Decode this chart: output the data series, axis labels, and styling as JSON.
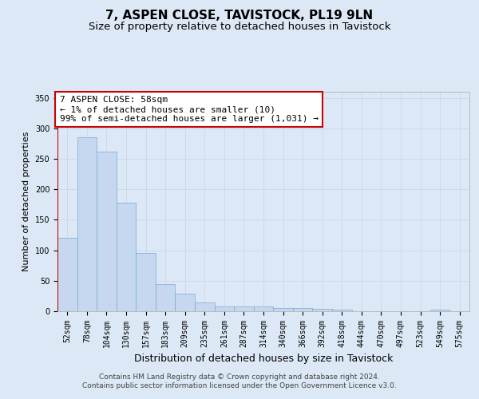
{
  "title": "7, ASPEN CLOSE, TAVISTOCK, PL19 9LN",
  "subtitle": "Size of property relative to detached houses in Tavistock",
  "xlabel": "Distribution of detached houses by size in Tavistock",
  "ylabel": "Number of detached properties",
  "categories": [
    "52sqm",
    "78sqm",
    "104sqm",
    "130sqm",
    "157sqm",
    "183sqm",
    "209sqm",
    "235sqm",
    "261sqm",
    "287sqm",
    "314sqm",
    "340sqm",
    "366sqm",
    "392sqm",
    "418sqm",
    "444sqm",
    "470sqm",
    "497sqm",
    "523sqm",
    "549sqm",
    "575sqm"
  ],
  "values": [
    120,
    285,
    262,
    178,
    96,
    44,
    29,
    15,
    8,
    8,
    8,
    5,
    5,
    4,
    3,
    0,
    0,
    0,
    0,
    3,
    0
  ],
  "bar_color": "#c5d8f0",
  "bar_edge_color": "#7aaad0",
  "annotation_text": "7 ASPEN CLOSE: 58sqm\n← 1% of detached houses are smaller (10)\n99% of semi-detached houses are larger (1,031) →",
  "annotation_box_color": "#ffffff",
  "annotation_box_edge_color": "#cc0000",
  "ylim": [
    0,
    360
  ],
  "yticks": [
    0,
    50,
    100,
    150,
    200,
    250,
    300,
    350
  ],
  "grid_color": "#c8d8ea",
  "background_color": "#dce8f5",
  "footer_line1": "Contains HM Land Registry data © Crown copyright and database right 2024.",
  "footer_line2": "Contains public sector information licensed under the Open Government Licence v3.0.",
  "title_fontsize": 11,
  "subtitle_fontsize": 9.5,
  "xlabel_fontsize": 9,
  "ylabel_fontsize": 8,
  "tick_fontsize": 7,
  "annotation_fontsize": 8,
  "footer_fontsize": 6.5
}
